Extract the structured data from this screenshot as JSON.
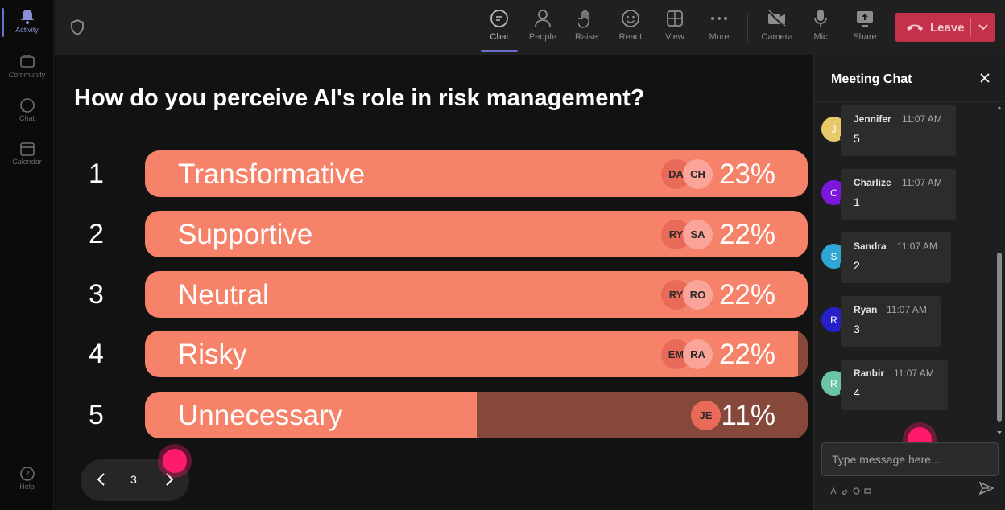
{
  "rail": {
    "items": [
      {
        "label": "Activity",
        "icon": "bell-icon"
      },
      {
        "label": "Community",
        "icon": "community-icon"
      },
      {
        "label": "Chat",
        "icon": "chat-icon"
      },
      {
        "label": "Calendar",
        "icon": "calendar-icon"
      }
    ],
    "help": {
      "label": "Help",
      "icon": "help-icon"
    }
  },
  "toolbar": {
    "items": [
      {
        "label": "Chat",
        "icon": "chat-icon"
      },
      {
        "label": "People",
        "icon": "people-icon"
      },
      {
        "label": "Raise",
        "icon": "raise-hand-icon"
      },
      {
        "label": "React",
        "icon": "react-icon"
      },
      {
        "label": "View",
        "icon": "view-icon"
      },
      {
        "label": "More",
        "icon": "more-icon"
      },
      {
        "label": "Camera",
        "icon": "camera-off-icon"
      },
      {
        "label": "Mic",
        "icon": "mic-icon"
      },
      {
        "label": "Share",
        "icon": "share-icon"
      }
    ],
    "leave_label": "Leave"
  },
  "poll": {
    "question": "How do you perceive AI's role in risk management?",
    "options": [
      {
        "num": "1",
        "label": "Transformative",
        "pct": "23%",
        "fraction": 1.0,
        "avatars": [
          "DA",
          "CH"
        ]
      },
      {
        "num": "2",
        "label": "Supportive",
        "pct": "22%",
        "fraction": 1.0,
        "avatars": [
          "RY",
          "SA"
        ]
      },
      {
        "num": "3",
        "label": "Neutral",
        "pct": "22%",
        "fraction": 1.0,
        "avatars": [
          "RY",
          "RO"
        ]
      },
      {
        "num": "4",
        "label": "Risky",
        "pct": "22%",
        "fraction": 0.985,
        "avatars": [
          "EM",
          "RA"
        ]
      },
      {
        "num": "5",
        "label": "Unnecessary",
        "pct": "11%",
        "fraction": 0.5,
        "avatars": [
          "JE"
        ]
      }
    ],
    "page": "3"
  },
  "chat": {
    "title": "Meeting Chat",
    "messages": [
      {
        "initial": "J",
        "name": "Jennifer",
        "time": "11:07 AM",
        "text": "5",
        "color": "#e7c96a"
      },
      {
        "initial": "C",
        "name": "Charlize",
        "time": "11:07 AM",
        "text": "1",
        "color": "#7a16dd"
      },
      {
        "initial": "S",
        "name": "Sandra",
        "time": "11:07 AM",
        "text": "2",
        "color": "#2fa6d3"
      },
      {
        "initial": "R",
        "name": "Ryan",
        "time": "11:07 AM",
        "text": "3",
        "color": "#2720c9"
      },
      {
        "initial": "R",
        "name": "Ranbir",
        "time": "11:07 AM",
        "text": "4",
        "color": "#6cc4a6"
      }
    ],
    "input_placeholder": "Type message here..."
  },
  "colors": {
    "bar": "#f6826a",
    "bar_remainder": "#86483a",
    "leave": "#c4314b",
    "accent": "#6b70c9",
    "click_marker": "#ff1a6e"
  }
}
